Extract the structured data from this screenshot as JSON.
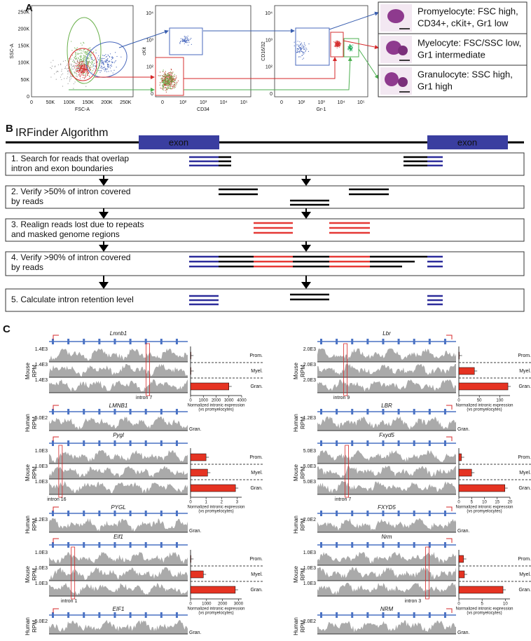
{
  "panelA": {
    "label": "A",
    "plots": [
      {
        "ylabel": "SSC-A",
        "xlabel": "FSC-A",
        "yticks": [
          "0",
          "50K",
          "100K",
          "150K",
          "200K",
          "250K"
        ],
        "xticks": [
          "0",
          "50K",
          "100K",
          "150K",
          "200K",
          "250K"
        ]
      },
      {
        "ylabel": "cKit",
        "xlabel": "CD34",
        "yticks": [
          "0",
          "10²",
          "10³",
          "10⁴"
        ],
        "xticks": [
          "0",
          "10²",
          "10³",
          "10⁴",
          "10⁵"
        ]
      },
      {
        "ylabel": "CD16/32",
        "xlabel": "Gr-1",
        "yticks": [
          "0",
          "10²",
          "10³",
          "10⁴"
        ],
        "xticks": [
          "0",
          "10²",
          "10³",
          "10⁴",
          "10⁵"
        ]
      }
    ],
    "cells": [
      [
        "Promyelocyte: FSC high,",
        "CD34+, cKit+, Gr1 low"
      ],
      [
        "Myelocyte: FSC/SSC low,",
        "Gr1 intermediate"
      ],
      [
        "Granulocyte: SSC high,",
        "Gr1 high"
      ]
    ]
  },
  "panelB": {
    "label": "B",
    "title": "IRFinder Algorithm",
    "exon": "exon",
    "steps": [
      [
        "1. Search for reads that overlap",
        "intron and exon boundaries"
      ],
      [
        "2. Verify >50% of intron covered",
        "by reads"
      ],
      [
        "3. Realign reads lost due to repeats",
        "and masked genome regions"
      ],
      [
        "4. Verify >90% of intron covered",
        "by reads"
      ],
      [
        "5. Calculate intron retention level"
      ]
    ]
  },
  "panelC": {
    "label": "C",
    "species": [
      "Mouse",
      "Human"
    ],
    "unit": "RPM",
    "stages": [
      "Prom.",
      "Myel.",
      "Gran."
    ],
    "axis_label": [
      "Normalized intronic expression",
      "(vs promyelocytes)"
    ],
    "genes": [
      {
        "mouse": "Lmnb1",
        "scale": "1.4E3",
        "intron": "intron 7",
        "human": "LMNB1",
        "human_scale": "5.0E2",
        "values": [
          10,
          30,
          3000
        ],
        "xlim": [
          0,
          4000
        ],
        "xticks": [
          0,
          1000,
          2000,
          3000,
          4000
        ]
      },
      {
        "mouse": "Lbr",
        "scale": "2.0E3",
        "intron": "intron 9",
        "human": "LBR",
        "human_scale": "1.2E3",
        "values": [
          1,
          38,
          120
        ],
        "xlim": [
          0,
          125
        ],
        "xticks": [
          0,
          50,
          100
        ]
      },
      {
        "mouse": "Pygl",
        "scale": "1.0E3",
        "intron": "intron 16",
        "human": "PYGL",
        "human_scale": "1.2E3",
        "values": [
          1,
          1.1,
          2.9
        ],
        "xlim": [
          0,
          3.3
        ],
        "xticks": [
          0,
          1,
          2,
          3
        ]
      },
      {
        "mouse": "Fxyd5",
        "scale": "5.0E3",
        "intron": "intron 7",
        "human": "FXYD5",
        "human_scale": "2.0E2",
        "values": [
          1,
          5,
          18
        ],
        "xlim": [
          0,
          20
        ],
        "xticks": [
          0,
          5,
          10,
          15,
          20
        ]
      },
      {
        "mouse": "Eif1",
        "scale": "1.0E3",
        "intron": "intron 1",
        "human": "EIF1",
        "human_scale": "5.0E2",
        "values": [
          10,
          800,
          2800
        ],
        "xlim": [
          0,
          3200
        ],
        "xticks": [
          0,
          1000,
          2000,
          3000
        ]
      },
      {
        "mouse": "Nrm",
        "scale": "1.0E3",
        "intron": "intron 3",
        "human": "NRM",
        "human_scale": "2.0E2",
        "values": [
          1,
          1.2,
          9.5
        ],
        "xlim": [
          0,
          11
        ],
        "xticks": [
          0,
          5,
          10
        ]
      }
    ]
  }
}
